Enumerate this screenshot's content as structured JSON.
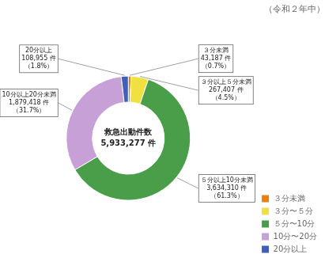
{
  "chart_data": {
    "type": "doughnut",
    "title": "（令和２年中）",
    "categories": [
      "３分未満",
      "３分〜５分",
      "５分〜10分",
      "10分〜20分",
      "20分以上"
    ],
    "values": [
      43187,
      267407,
      3634310,
      1879418,
      108955
    ],
    "colors": [
      "#e8820c",
      "#f0e040",
      "#4a9e4a",
      "#c8a0d8",
      "#4060b8"
    ],
    "data_labels": true,
    "value_labels": [
      "３分未満\n43,187 件\n（0.7%）",
      "３分以上５分未満\n267,407 件\n（4.5%）",
      "５分以上10分未満\n3,634,310 件\n（61.3%）",
      "10分以上20分未満\n1,879,418 件\n（31.7%）",
      "20分以上\n108,955 件\n（1.8%）"
    ],
    "annotations": [
      "救急出動件数",
      "5,933,277 件"
    ],
    "legend": "lower right"
  }
}
